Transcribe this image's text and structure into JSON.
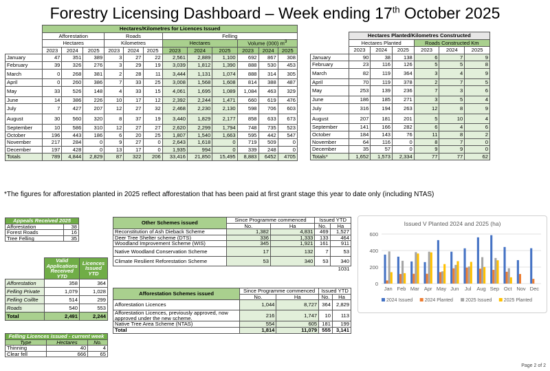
{
  "title_main": "Forestry Licensing Dashboard – Week ending 17",
  "title_sup": "th",
  "title_end": " October 2025",
  "t1": {
    "header": "Hectares/Kilometres for Licences Issued",
    "groups": [
      "Afforestation",
      "Roads",
      "Felling"
    ],
    "subgroups": [
      "Hectares",
      "Kilometres",
      "Hectares",
      "Volume (000) m"
    ],
    "vol_sup": "3",
    "years": [
      "2023",
      "2024",
      "2025"
    ],
    "rows": [
      [
        "January",
        "47",
        "351",
        "389",
        "3",
        "27",
        "22",
        "2,561",
        "2,889",
        "1,100",
        "692",
        "867",
        "308"
      ],
      [
        "February",
        "39",
        "326",
        "276",
        "3",
        "29",
        "19",
        "3,039",
        "1,812",
        "1,390",
        "888",
        "530",
        "453"
      ],
      [
        "March",
        "0",
        "268",
        "381",
        "2",
        "28",
        "11",
        "3,444",
        "1,131",
        "1,074",
        "888",
        "314",
        "305"
      ],
      [
        "April",
        "0",
        "260",
        "386",
        "7",
        "33",
        "25",
        "3,008",
        "1,568",
        "1,608",
        "814",
        "388",
        "487"
      ],
      [
        "May",
        "33",
        "526",
        "148",
        "4",
        "33",
        "15",
        "4,061",
        "1,695",
        "1,089",
        "1,084",
        "463",
        "329"
      ],
      [
        "June",
        "14",
        "386",
        "226",
        "10",
        "17",
        "12",
        "2,392",
        "2,244",
        "1,471",
        "660",
        "619",
        "476"
      ],
      [
        "July",
        "7",
        "427",
        "207",
        "12",
        "27",
        "32",
        "2,468",
        "2,230",
        "2,130",
        "598",
        "706",
        "603"
      ],
      [
        "August",
        "30",
        "560",
        "320",
        "8",
        "37",
        "19",
        "3,440",
        "1,829",
        "2,177",
        "858",
        "633",
        "673"
      ],
      [
        "September",
        "10",
        "586",
        "310",
        "12",
        "27",
        "27",
        "2,620",
        "2,299",
        "1,794",
        "748",
        "735",
        "523"
      ],
      [
        "October",
        "196",
        "443",
        "186",
        "6",
        "20",
        "25",
        "1,807",
        "1,540",
        "1,663",
        "595",
        "442",
        "547"
      ],
      [
        "November",
        "217",
        "284",
        "0",
        "9",
        "27",
        "0",
        "2,643",
        "1,618",
        "0",
        "719",
        "509",
        "0"
      ],
      [
        "December",
        "197",
        "428",
        "0",
        "13",
        "17",
        "0",
        "1,935",
        "994",
        "0",
        "339",
        "248",
        "0"
      ],
      [
        "Totals",
        "789",
        "4,844",
        "2,829",
        "87",
        "322",
        "206",
        "33,416",
        "21,850",
        "15,495",
        "8,883",
        "6452",
        "4705"
      ]
    ]
  },
  "t2": {
    "header": "Hectares Planted/Kilometres Constructed",
    "groups": [
      "Hectares Planted",
      "Roads Constructed Km"
    ],
    "years": [
      "2023",
      "2024",
      "2025"
    ],
    "rows": [
      [
        "January",
        "90",
        "38",
        "138",
        "6",
        "7",
        "9"
      ],
      [
        "February",
        "23",
        "116",
        "126",
        "5",
        "5",
        "8"
      ],
      [
        "March",
        "82",
        "119",
        "364",
        "3",
        "4",
        "9"
      ],
      [
        "April",
        "70",
        "119",
        "378",
        "2",
        "7",
        "5"
      ],
      [
        "May",
        "253",
        "139",
        "236",
        "7",
        "3",
        "6"
      ],
      [
        "June",
        "186",
        "185",
        "271",
        "3",
        "5",
        "4"
      ],
      [
        "July",
        "316",
        "194",
        "263",
        "12",
        "8",
        "9"
      ],
      [
        "August",
        "207",
        "181",
        "201",
        "5",
        "10",
        "4"
      ],
      [
        "September",
        "141",
        "166",
        "282",
        "6",
        "4",
        "6"
      ],
      [
        "October",
        "184",
        "143",
        "76",
        "11",
        "8",
        "2"
      ],
      [
        "November",
        "64",
        "116",
        "0",
        "8",
        "7",
        "0"
      ],
      [
        "December",
        "35",
        "57",
        "0",
        "9",
        "9",
        "0"
      ],
      [
        "Totals*",
        "1,652",
        "1,573",
        "2,334",
        "77",
        "77",
        "62"
      ]
    ]
  },
  "note": "*The figures for afforestation planted in 2025 reflect afforestation that has been paid at first grant stage this year to date only (including NTAS)",
  "appeals": {
    "header": "Appeals Received 2025",
    "rows": [
      [
        "Afforestation",
        "38"
      ],
      [
        "Forest Roads",
        "16"
      ],
      [
        "Tree Felling",
        "35"
      ]
    ]
  },
  "valid": {
    "h1": "Valid Applications Received YTD",
    "h2": "Licences Issued YTD",
    "rows": [
      [
        "Afforestation",
        "358",
        "364"
      ],
      [
        "Felling Private",
        "1,079",
        "1,028"
      ],
      [
        "Felling Coillte",
        "514",
        "299"
      ],
      [
        "Roads",
        "540",
        "553"
      ],
      [
        "Total",
        "2,491",
        "2,244"
      ]
    ]
  },
  "felling": {
    "header": "Felling Licences issued - current week",
    "cols": [
      "Type",
      "Hectares",
      "No."
    ],
    "rows": [
      [
        "Thinning",
        "40",
        "4"
      ],
      [
        "Clear fell",
        "666",
        "65"
      ]
    ]
  },
  "other": {
    "header": "Other Schemes issued",
    "since": "Since Programme commenced",
    "ytd": "Issued YTD",
    "cols": [
      "No.",
      "Ha",
      "No.",
      "Ha"
    ],
    "rows": [
      [
        "Reconstitution of Ash Dieback Scheme",
        "1,382",
        "4,831",
        "469",
        "1,527"
      ],
      [
        "Deer Tree Shelter scheme (DTS)",
        "336",
        "1,333",
        "133",
        "464"
      ],
      [
        "Woodland Improvement Scheme (WIS)",
        "345",
        "1,921",
        "161",
        "911"
      ],
      [
        "Native Woodland Conservation Scheme",
        "17",
        "132",
        "7",
        "53"
      ],
      [
        "Climate Resilient Reforestation Scheme",
        "53",
        "340",
        "53",
        "340"
      ]
    ],
    "extra": "1031"
  },
  "aff": {
    "header": "Afforestation Schemes issued",
    "since": "Since Programme commenced",
    "ytd": "Issued YTD",
    "cols": [
      "No.",
      "Ha",
      "No.",
      "Ha"
    ],
    "rows": [
      [
        "Afforestation Licences",
        "1,044",
        "8,727",
        "364",
        "2,829"
      ],
      [
        "Afforestation Licences, previously approved, now approved under the new scheme.",
        "216",
        "1,747",
        "10",
        "113"
      ],
      [
        "Native Tree Area Scheme (NTAS)",
        "554",
        "605",
        "181",
        "199"
      ],
      [
        "Total",
        "1,814",
        "11,079",
        "555",
        "3,141"
      ]
    ]
  },
  "chart_data": {
    "type": "bar",
    "title": "Issued V Planted 2024 and 2025 (ha)",
    "categories": [
      "Jan",
      "Feb",
      "Mar",
      "Apr",
      "May",
      "Jun",
      "Jul",
      "Aug",
      "Sep",
      "Oct",
      "Nov",
      "Dec"
    ],
    "ylim": [
      0,
      600
    ],
    "yticks": [
      "0",
      "200",
      "400",
      "600"
    ],
    "grid": true,
    "legend": "bottom",
    "series": [
      {
        "name": "2024 Issued",
        "color": "#4472c4",
        "values": [
          351,
          326,
          268,
          260,
          526,
          386,
          427,
          560,
          586,
          443,
          284,
          428
        ]
      },
      {
        "name": "2024 Planted",
        "color": "#ed7d31",
        "values": [
          38,
          116,
          119,
          119,
          139,
          185,
          194,
          181,
          166,
          143,
          116,
          57
        ]
      },
      {
        "name": "2025 Issued",
        "color": "#a5a5a5",
        "values": [
          389,
          276,
          381,
          386,
          148,
          226,
          207,
          320,
          310,
          186,
          0,
          0
        ]
      },
      {
        "name": "2025 Planted",
        "color": "#ffc000",
        "values": [
          138,
          126,
          364,
          378,
          236,
          271,
          263,
          201,
          282,
          76,
          0,
          0
        ]
      }
    ]
  },
  "page": "Page 2 of 2"
}
